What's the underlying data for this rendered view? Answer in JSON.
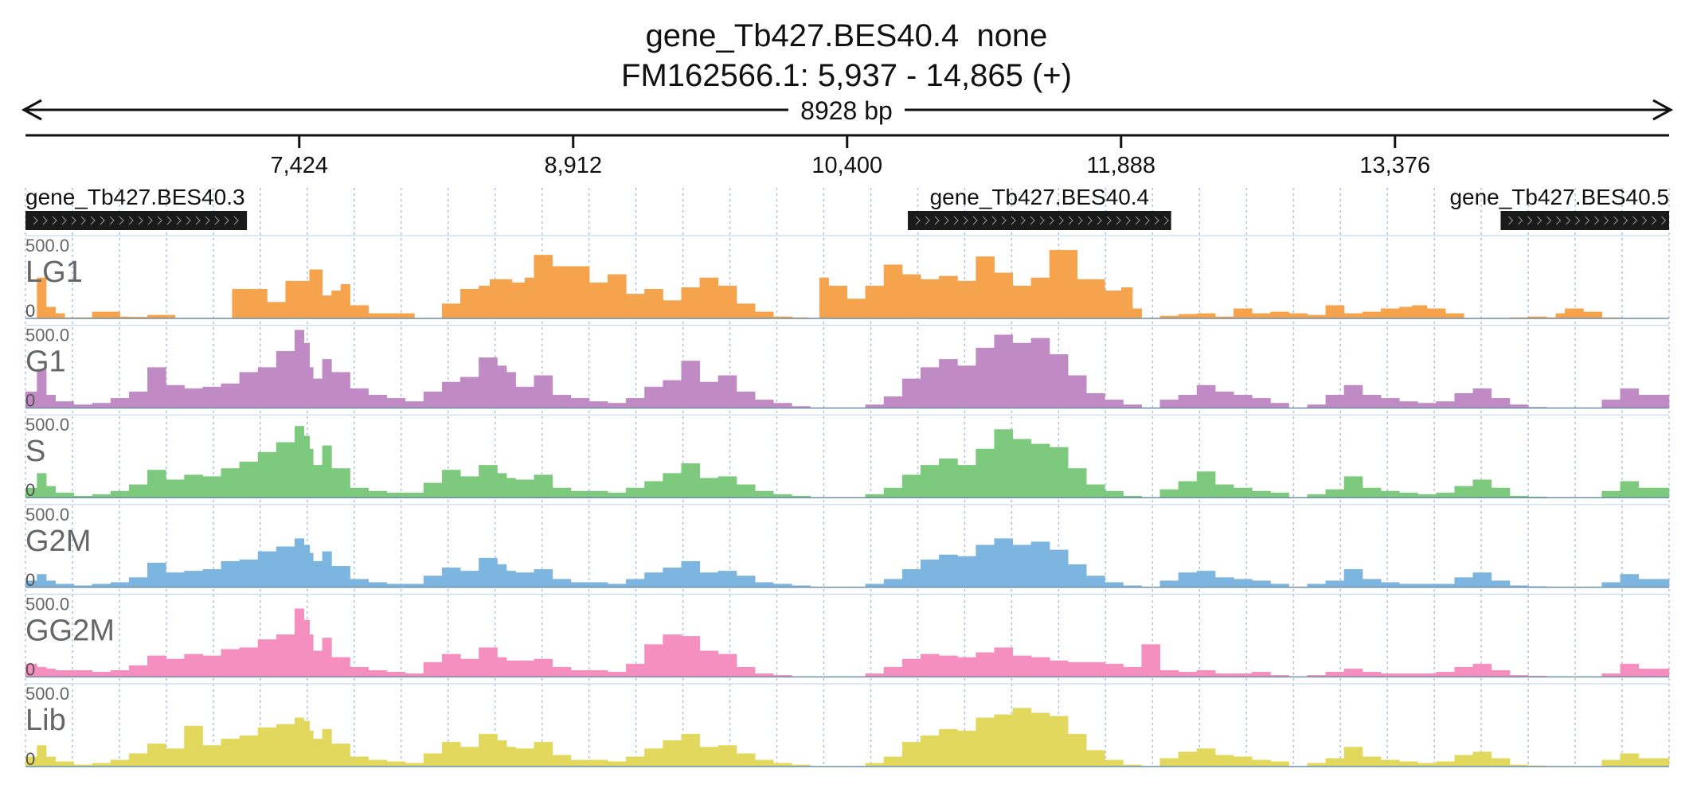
{
  "header": {
    "title": "gene_Tb427.BES40.4  none",
    "locus": "FM162566.1: 5,937 - 14,865 (+)",
    "span_label": "8928 bp"
  },
  "chart_data": {
    "type": "area",
    "title": "gene_Tb427.BES40.4  none",
    "subtitle": "FM162566.1: 5,937 - 14,865 (+)",
    "xlim": [
      5937,
      14865
    ],
    "x_ticks": [
      7424,
      8912,
      10400,
      11888,
      13376
    ],
    "x_tick_labels": [
      "7,424",
      "8,912",
      "10,400",
      "11,888",
      "13,376"
    ],
    "ylim": [
      0,
      500
    ],
    "y_max_label": "500.0",
    "y_min_label": "0",
    "grid": true,
    "genes": [
      {
        "name": "gene_Tb427.BES40.3",
        "start": 5937,
        "end": 7140,
        "strand": "+"
      },
      {
        "name": "gene_Tb427.BES40.4",
        "start": 10730,
        "end": 12160,
        "strand": "+"
      },
      {
        "name": "gene_Tb427.BES40.5",
        "start": 13950,
        "end": 14865,
        "strand": "+"
      }
    ],
    "series": [
      {
        "name": "LG1",
        "color": "#f5a34d",
        "x": [
          5937,
          6000,
          6050,
          6100,
          6150,
          6300,
          6450,
          6500,
          6600,
          6750,
          6900,
          7060,
          7250,
          7350,
          7480,
          7550,
          7600,
          7650,
          7700,
          7800,
          8050,
          8200,
          8300,
          8400,
          8460,
          8580,
          8650,
          8700,
          8800,
          9000,
          9100,
          9200,
          9300,
          9400,
          9500,
          9600,
          9700,
          9800,
          9900,
          10000,
          10100,
          10190,
          10250,
          10300,
          10400,
          10500,
          10600,
          10700,
          10800,
          10900,
          11000,
          11100,
          11200,
          11300,
          11400,
          11500,
          11650,
          11800,
          11890,
          11950,
          12000,
          12100,
          12200,
          12300,
          12400,
          12500,
          12600,
          12700,
          12800,
          12900,
          13000,
          13100,
          13200,
          13300,
          13400,
          13470,
          13550,
          13650,
          13750,
          13900,
          14000,
          14100,
          14200,
          14250,
          14300,
          14400,
          14500,
          14600,
          14700,
          14865
        ],
        "y": [
          0,
          250,
          70,
          30,
          5,
          40,
          10,
          8,
          20,
          0,
          0,
          180,
          100,
          230,
          300,
          140,
          170,
          210,
          80,
          30,
          0,
          90,
          180,
          200,
          240,
          220,
          250,
          390,
          320,
          220,
          270,
          150,
          180,
          110,
          190,
          250,
          200,
          90,
          40,
          10,
          5,
          0,
          250,
          200,
          120,
          200,
          330,
          270,
          240,
          260,
          230,
          380,
          280,
          200,
          250,
          420,
          240,
          170,
          190,
          60,
          0,
          15,
          25,
          30,
          10,
          60,
          30,
          40,
          30,
          20,
          80,
          30,
          40,
          60,
          70,
          80,
          60,
          30,
          0,
          0,
          5,
          10,
          5,
          30,
          60,
          40,
          5,
          0,
          0,
          0
        ]
      },
      {
        "name": "G1",
        "color": "#c08bc4",
        "x": [
          5937,
          6000,
          6050,
          6100,
          6200,
          6300,
          6400,
          6500,
          6600,
          6700,
          6800,
          6900,
          7000,
          7100,
          7200,
          7300,
          7400,
          7450,
          7480,
          7500,
          7550,
          7600,
          7700,
          7800,
          7900,
          8000,
          8100,
          8200,
          8300,
          8400,
          8500,
          8550,
          8600,
          8700,
          8800,
          8900,
          9000,
          9100,
          9200,
          9300,
          9400,
          9500,
          9600,
          9700,
          9800,
          9900,
          10000,
          10100,
          10200,
          10300,
          10400,
          10500,
          10600,
          10700,
          10800,
          10900,
          11000,
          11100,
          11200,
          11300,
          11400,
          11500,
          11600,
          11700,
          11800,
          11900,
          12000,
          12100,
          12200,
          12300,
          12400,
          12500,
          12600,
          12700,
          12800,
          12900,
          13000,
          13100,
          13200,
          13300,
          13400,
          13500,
          13600,
          13700,
          13800,
          13900,
          14000,
          14100,
          14200,
          14300,
          14400,
          14500,
          14600,
          14700,
          14865
        ],
        "y": [
          100,
          240,
          80,
          40,
          20,
          30,
          60,
          100,
          250,
          140,
          120,
          130,
          150,
          220,
          250,
          350,
          480,
          400,
          250,
          180,
          300,
          220,
          120,
          80,
          60,
          40,
          100,
          160,
          190,
          310,
          260,
          220,
          130,
          200,
          80,
          60,
          40,
          30,
          60,
          130,
          170,
          290,
          160,
          200,
          100,
          50,
          30,
          10,
          0,
          0,
          0,
          20,
          70,
          180,
          250,
          300,
          260,
          370,
          450,
          400,
          430,
          330,
          200,
          90,
          50,
          20,
          0,
          50,
          80,
          140,
          100,
          80,
          60,
          30,
          0,
          20,
          80,
          140,
          80,
          60,
          40,
          30,
          40,
          90,
          120,
          60,
          20,
          5,
          0,
          0,
          0,
          50,
          120,
          80,
          20
        ],
        "_note_placeholder": ""
      },
      {
        "name": "S",
        "color": "#7dc97d",
        "x": [
          5937,
          6000,
          6050,
          6100,
          6200,
          6300,
          6400,
          6500,
          6600,
          6700,
          6800,
          6900,
          7000,
          7100,
          7200,
          7300,
          7400,
          7450,
          7480,
          7500,
          7550,
          7600,
          7700,
          7800,
          7900,
          8000,
          8100,
          8200,
          8300,
          8400,
          8500,
          8550,
          8600,
          8700,
          8800,
          8900,
          9000,
          9100,
          9200,
          9300,
          9400,
          9500,
          9600,
          9700,
          9800,
          9900,
          10000,
          10100,
          10200,
          10300,
          10400,
          10500,
          10600,
          10700,
          10800,
          10900,
          11000,
          11100,
          11200,
          11300,
          11400,
          11500,
          11600,
          11700,
          11800,
          11900,
          12000,
          12100,
          12200,
          12300,
          12400,
          12500,
          12600,
          12700,
          12800,
          12900,
          13000,
          13100,
          13200,
          13300,
          13400,
          13500,
          13600,
          13700,
          13800,
          13900,
          14000,
          14100,
          14200,
          14300,
          14400,
          14500,
          14600,
          14700,
          14865
        ],
        "y": [
          60,
          150,
          70,
          30,
          10,
          20,
          40,
          80,
          170,
          110,
          140,
          130,
          180,
          220,
          280,
          340,
          440,
          380,
          300,
          200,
          320,
          180,
          60,
          40,
          30,
          30,
          90,
          170,
          130,
          200,
          150,
          120,
          110,
          140,
          60,
          40,
          40,
          30,
          60,
          100,
          150,
          210,
          120,
          130,
          80,
          40,
          20,
          10,
          0,
          0,
          0,
          20,
          60,
          140,
          200,
          240,
          200,
          300,
          420,
          360,
          330,
          310,
          180,
          80,
          40,
          10,
          0,
          50,
          100,
          160,
          80,
          60,
          40,
          30,
          0,
          20,
          50,
          130,
          60,
          40,
          30,
          20,
          30,
          70,
          110,
          60,
          10,
          5,
          0,
          0,
          0,
          40,
          100,
          60,
          10
        ]
      },
      {
        "name": "G2M",
        "color": "#7cb5e0",
        "x": [
          5937,
          6000,
          6050,
          6100,
          6200,
          6300,
          6400,
          6500,
          6600,
          6700,
          6800,
          6900,
          7000,
          7100,
          7200,
          7300,
          7400,
          7450,
          7480,
          7500,
          7550,
          7600,
          7700,
          7800,
          7900,
          8000,
          8100,
          8200,
          8300,
          8400,
          8500,
          8550,
          8600,
          8700,
          8800,
          8900,
          9000,
          9100,
          9200,
          9300,
          9400,
          9500,
          9600,
          9700,
          9800,
          9900,
          10000,
          10100,
          10200,
          10300,
          10400,
          10500,
          10600,
          10700,
          10800,
          10900,
          11000,
          11100,
          11200,
          11300,
          11400,
          11500,
          11600,
          11700,
          11800,
          11900,
          12000,
          12100,
          12200,
          12300,
          12400,
          12500,
          12600,
          12700,
          12800,
          12900,
          13000,
          13100,
          13200,
          13300,
          13400,
          13500,
          13600,
          13700,
          13800,
          13900,
          14000,
          14100,
          14200,
          14300,
          14400,
          14500,
          14600,
          14700,
          14865
        ],
        "y": [
          40,
          80,
          40,
          20,
          10,
          20,
          30,
          60,
          150,
          90,
          100,
          110,
          160,
          170,
          220,
          250,
          300,
          260,
          210,
          160,
          220,
          130,
          50,
          30,
          20,
          20,
          70,
          120,
          100,
          180,
          140,
          100,
          90,
          110,
          50,
          30,
          30,
          20,
          50,
          90,
          120,
          160,
          90,
          100,
          70,
          30,
          20,
          10,
          0,
          0,
          0,
          20,
          50,
          110,
          170,
          200,
          190,
          260,
          300,
          260,
          280,
          230,
          140,
          70,
          30,
          10,
          0,
          40,
          90,
          100,
          60,
          50,
          40,
          20,
          0,
          20,
          40,
          110,
          50,
          30,
          20,
          20,
          20,
          60,
          90,
          40,
          10,
          5,
          0,
          0,
          0,
          30,
          80,
          50,
          10
        ]
      },
      {
        "name": "GG2M",
        "color": "#f48fbf",
        "x": [
          5937,
          6000,
          6050,
          6100,
          6200,
          6300,
          6400,
          6500,
          6600,
          6700,
          6800,
          6900,
          7000,
          7100,
          7200,
          7300,
          7400,
          7450,
          7480,
          7500,
          7550,
          7600,
          7700,
          7800,
          7900,
          8000,
          8100,
          8200,
          8300,
          8400,
          8500,
          8550,
          8600,
          8700,
          8800,
          8900,
          9000,
          9100,
          9200,
          9300,
          9400,
          9500,
          9600,
          9700,
          9800,
          9900,
          10000,
          10100,
          10200,
          10300,
          10400,
          10500,
          10600,
          10700,
          10800,
          10900,
          11000,
          11100,
          11200,
          11300,
          11400,
          11500,
          11600,
          11700,
          11800,
          11900,
          12000,
          12100,
          12200,
          12300,
          12400,
          12500,
          12600,
          12700,
          12800,
          12900,
          13000,
          13100,
          13200,
          13300,
          13400,
          13500,
          13600,
          13700,
          13800,
          13900,
          14000,
          14100,
          14200,
          14300,
          14400,
          14500,
          14600,
          14700,
          14865
        ],
        "y": [
          80,
          60,
          50,
          40,
          40,
          30,
          40,
          70,
          130,
          110,
          140,
          130,
          170,
          180,
          230,
          260,
          420,
          350,
          260,
          160,
          240,
          120,
          60,
          40,
          30,
          20,
          90,
          140,
          110,
          180,
          120,
          100,
          100,
          110,
          60,
          40,
          40,
          30,
          80,
          200,
          260,
          250,
          160,
          140,
          60,
          20,
          10,
          0,
          0,
          0,
          0,
          20,
          60,
          110,
          140,
          130,
          120,
          150,
          180,
          130,
          120,
          100,
          90,
          90,
          80,
          60,
          200,
          40,
          30,
          40,
          20,
          20,
          30,
          10,
          0,
          10,
          30,
          50,
          30,
          20,
          20,
          20,
          30,
          60,
          80,
          40,
          10,
          5,
          0,
          0,
          0,
          20,
          80,
          50,
          10
        ]
      },
      {
        "name": "Lib",
        "color": "#e3d85e",
        "x": [
          5937,
          6000,
          6050,
          6100,
          6200,
          6300,
          6400,
          6500,
          6600,
          6700,
          6800,
          6900,
          7000,
          7100,
          7200,
          7300,
          7400,
          7450,
          7480,
          7500,
          7550,
          7600,
          7700,
          7800,
          7900,
          8000,
          8100,
          8200,
          8300,
          8400,
          8500,
          8550,
          8600,
          8700,
          8800,
          8900,
          9000,
          9100,
          9200,
          9300,
          9400,
          9500,
          9600,
          9700,
          9800,
          9900,
          10000,
          10100,
          10200,
          10300,
          10400,
          10500,
          10600,
          10700,
          10800,
          10900,
          11000,
          11100,
          11200,
          11300,
          11400,
          11500,
          11600,
          11700,
          11800,
          11900,
          12000,
          12100,
          12200,
          12300,
          12400,
          12500,
          12600,
          12700,
          12800,
          12900,
          13000,
          13100,
          13200,
          13300,
          13400,
          13500,
          13600,
          13700,
          13800,
          13900,
          14000,
          14100,
          14200,
          14300,
          14400,
          14500,
          14600,
          14700,
          14865
        ],
        "y": [
          60,
          130,
          60,
          30,
          10,
          20,
          40,
          80,
          140,
          110,
          250,
          130,
          170,
          190,
          240,
          260,
          300,
          280,
          220,
          170,
          230,
          140,
          60,
          40,
          30,
          20,
          80,
          150,
          120,
          200,
          160,
          120,
          110,
          150,
          70,
          40,
          40,
          30,
          60,
          110,
          160,
          200,
          120,
          130,
          80,
          40,
          20,
          10,
          0,
          0,
          0,
          20,
          60,
          150,
          190,
          230,
          220,
          300,
          320,
          360,
          330,
          310,
          200,
          100,
          40,
          10,
          0,
          50,
          90,
          110,
          70,
          60,
          40,
          30,
          0,
          20,
          50,
          120,
          60,
          40,
          30,
          20,
          30,
          70,
          90,
          50,
          10,
          5,
          0,
          0,
          0,
          40,
          80,
          50,
          10
        ]
      }
    ]
  }
}
